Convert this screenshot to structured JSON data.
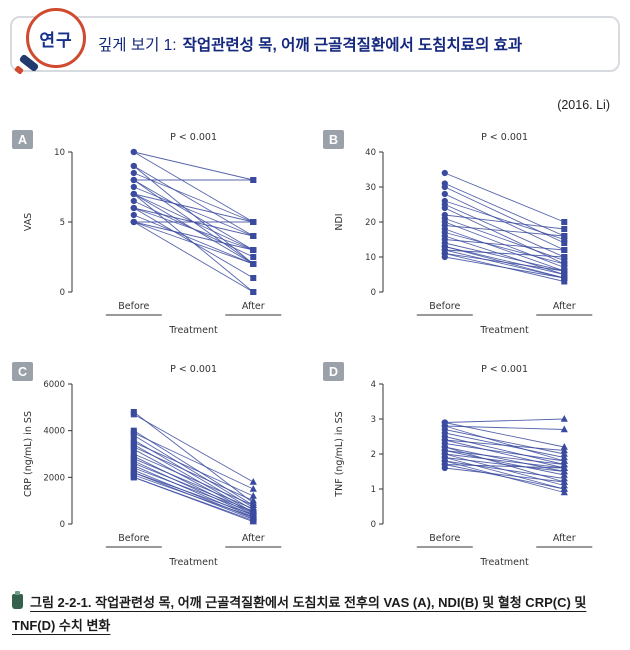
{
  "header": {
    "logo_text": "연구",
    "title_prefix": "깊게 보기 1:",
    "title": "작업관련성 목, 어깨 근골격질환에서 도침치료의 효과",
    "citation": "(2016. Li)"
  },
  "colors": {
    "chart_blue": "#3a4a9f",
    "badge_gray": "#9ba1a9",
    "title_navy": "#14277e",
    "logo_red": "#cf4a2f",
    "caption_green": "#33614c",
    "axis": "#333333"
  },
  "caption": {
    "text": "그림 2-2-1. 작업관련성 목, 어깨 근골격질환에서 도침치료 전후의 VAS (A), NDI(B) 및 혈청 CRP(C) 및 TNF(D) 수치 변화"
  },
  "chart_data": [
    {
      "panel": "A",
      "type": "paired-line",
      "title": "P < 0.001",
      "ylabel": "VAS",
      "xlabel": "Treatment",
      "categories": [
        "Before",
        "After"
      ],
      "ylim": [
        0,
        10
      ],
      "yticks": [
        0,
        5,
        10
      ],
      "marker_before": "circle",
      "marker_after": "square",
      "pairs": [
        [
          10,
          5
        ],
        [
          10,
          8
        ],
        [
          9,
          4
        ],
        [
          9,
          2
        ],
        [
          8.5,
          5
        ],
        [
          8,
          8
        ],
        [
          8,
          3
        ],
        [
          8,
          2
        ],
        [
          7.5,
          4
        ],
        [
          7,
          5
        ],
        [
          7,
          3
        ],
        [
          7,
          2
        ],
        [
          7,
          0
        ],
        [
          6.5,
          2.5
        ],
        [
          6,
          4
        ],
        [
          6,
          3
        ],
        [
          6,
          1
        ],
        [
          5.5,
          2
        ],
        [
          5,
          5
        ],
        [
          5,
          3
        ],
        [
          5,
          2
        ],
        [
          5,
          0
        ]
      ]
    },
    {
      "panel": "B",
      "type": "paired-line",
      "title": "P < 0.001",
      "ylabel": "NDI",
      "xlabel": "Treatment",
      "categories": [
        "Before",
        "After"
      ],
      "ylim": [
        0,
        40
      ],
      "yticks": [
        0,
        10,
        20,
        30,
        40
      ],
      "marker_before": "circle",
      "marker_after": "square",
      "pairs": [
        [
          34,
          20
        ],
        [
          31,
          16
        ],
        [
          30,
          14
        ],
        [
          28,
          12
        ],
        [
          26,
          15
        ],
        [
          25,
          10
        ],
        [
          24,
          8
        ],
        [
          22,
          18
        ],
        [
          21,
          9
        ],
        [
          20,
          7
        ],
        [
          19,
          16
        ],
        [
          18,
          6
        ],
        [
          17,
          8
        ],
        [
          16,
          5
        ],
        [
          15,
          12
        ],
        [
          14,
          6
        ],
        [
          13,
          5
        ],
        [
          13,
          4
        ],
        [
          12,
          10
        ],
        [
          12,
          4
        ],
        [
          11,
          6
        ],
        [
          11,
          3
        ],
        [
          10,
          4
        ]
      ]
    },
    {
      "panel": "C",
      "type": "paired-line",
      "title": "P < 0.001",
      "ylabel": "CRP (ng/mL) in SS",
      "xlabel": "Treatment",
      "categories": [
        "Before",
        "After"
      ],
      "ylim": [
        0,
        6000
      ],
      "yticks": [
        0,
        2000,
        4000,
        6000
      ],
      "marker_before": "square",
      "marker_after": "triangle",
      "pairs": [
        [
          4800,
          900
        ],
        [
          4700,
          1800
        ],
        [
          4000,
          800
        ],
        [
          3900,
          1500
        ],
        [
          3800,
          700
        ],
        [
          3600,
          600
        ],
        [
          3500,
          1200
        ],
        [
          3400,
          500
        ],
        [
          3300,
          1000
        ],
        [
          3200,
          450
        ],
        [
          3000,
          800
        ],
        [
          2900,
          400
        ],
        [
          2800,
          650
        ],
        [
          2700,
          350
        ],
        [
          2600,
          550
        ],
        [
          2500,
          300
        ],
        [
          2400,
          500
        ],
        [
          2300,
          250
        ],
        [
          2200,
          400
        ],
        [
          2200,
          200
        ],
        [
          2100,
          300
        ],
        [
          2000,
          150
        ],
        [
          2000,
          100
        ]
      ]
    },
    {
      "panel": "D",
      "type": "paired-line",
      "title": "P < 0.001",
      "ylabel": "TNF (ng/mL) in SS",
      "xlabel": "Treatment",
      "categories": [
        "Before",
        "After"
      ],
      "ylim": [
        0,
        4
      ],
      "yticks": [
        0,
        1,
        2,
        3,
        4
      ],
      "marker_before": "circle",
      "marker_after": "triangle",
      "pairs": [
        [
          2.9,
          3.0
        ],
        [
          2.9,
          2.2
        ],
        [
          2.8,
          2.7
        ],
        [
          2.8,
          1.8
        ],
        [
          2.7,
          2.0
        ],
        [
          2.6,
          1.9
        ],
        [
          2.5,
          1.7
        ],
        [
          2.4,
          2.1
        ],
        [
          2.4,
          1.6
        ],
        [
          2.3,
          1.8
        ],
        [
          2.2,
          1.5
        ],
        [
          2.2,
          1.2
        ],
        [
          2.1,
          1.7
        ],
        [
          2.1,
          1.4
        ],
        [
          2.0,
          1.6
        ],
        [
          2.0,
          1.1
        ],
        [
          1.9,
          1.5
        ],
        [
          1.9,
          1.0
        ],
        [
          1.8,
          1.3
        ],
        [
          1.8,
          0.9
        ],
        [
          1.7,
          1.6
        ],
        [
          1.7,
          1.0
        ],
        [
          1.6,
          1.2
        ]
      ]
    }
  ]
}
